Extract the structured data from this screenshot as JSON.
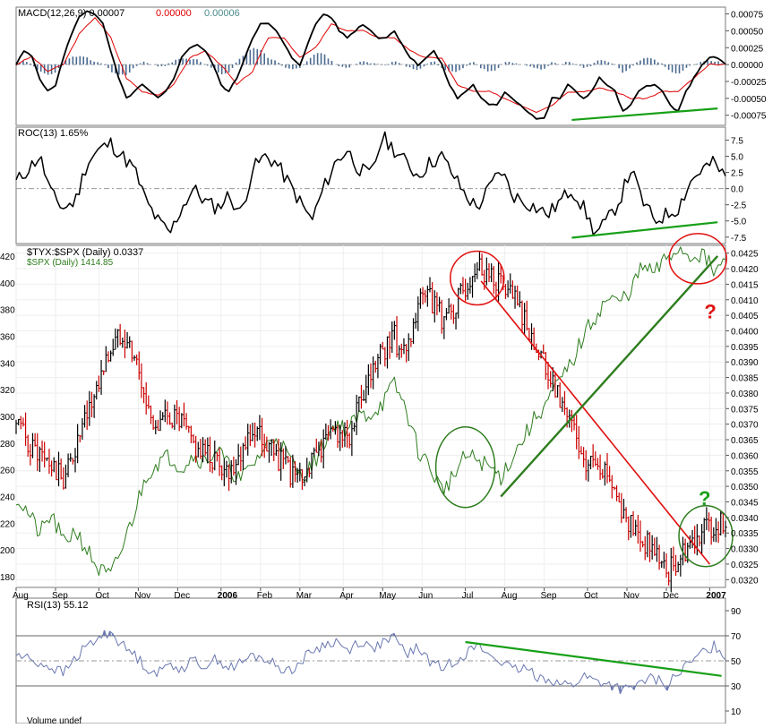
{
  "colors": {
    "price_up": "#000000",
    "price_down": "#cc0000",
    "spx_line": "#2e7d1e",
    "macd_line": "#000000",
    "signal_line": "#e00000",
    "histogram": "#4a6a90",
    "roc_line": "#000000",
    "rsi_line": "#6a78b0",
    "annotation_green": "#18a018",
    "annotation_red": "#e01010",
    "grid": "#d8d8d8"
  },
  "chart_data": [
    {
      "id": "macd",
      "type": "line",
      "title": "MACD(12,26,9)",
      "legend": [
        {
          "text": "MACD(12,26,9) 0.00007",
          "color": "#000000"
        },
        {
          "text": "0.00000",
          "color": "#e00000"
        },
        {
          "text": "0.00006",
          "color": "#4a8a8a"
        }
      ],
      "ylim": [
        -0.0009,
        0.00085
      ],
      "yticks": [
        "0.00075",
        "0.00050",
        "0.00025",
        "0.00000",
        "-0.00025",
        "-0.00050",
        "-0.00075"
      ],
      "ytick_values": [
        0.00075,
        0.0005,
        0.00025,
        0,
        -0.00025,
        -0.0005,
        -0.00075
      ],
      "series": [
        {
          "name": "MACD",
          "x": [
            0,
            2,
            4,
            6,
            8,
            10,
            12,
            14,
            16,
            18,
            20,
            22,
            24,
            26,
            28,
            30,
            32,
            34,
            36,
            38,
            40,
            42,
            44,
            46,
            48,
            50,
            52,
            54,
            56,
            58,
            60,
            62,
            64,
            66,
            68,
            70,
            72,
            74,
            76,
            78,
            80,
            82,
            84,
            86,
            88,
            90,
            92,
            94,
            96,
            98,
            100,
            102,
            104,
            106,
            108,
            110,
            112,
            114,
            116,
            118,
            120,
            122,
            124,
            126,
            128,
            130,
            132,
            134,
            136,
            138,
            140,
            142,
            144,
            146,
            148,
            150,
            152,
            154,
            156,
            158,
            160,
            162,
            164,
            166,
            168,
            170,
            172,
            174,
            176,
            178,
            180
          ],
          "values": [
            0.0,
            0.0002,
            0.00012,
            -0.0002,
            -0.0004,
            -0.0003,
            0.0001,
            0.00045,
            0.0007,
            0.0008,
            0.00075,
            0.0006,
            0.0002,
            -0.0002,
            -0.0005,
            -0.0004,
            -0.0003,
            -0.0004,
            -0.0005,
            -0.0004,
            -0.0002,
            0.0001,
            0.00025,
            0.0003,
            0.0002,
            0.0,
            -0.0003,
            -0.0004,
            -0.0002,
            0.0001,
            0.0004,
            0.0006,
            0.0006,
            0.0005,
            0.0003,
            0.0001,
            0.0,
            0.0003,
            0.0006,
            0.00075,
            0.0007,
            0.0005,
            0.0004,
            0.0005,
            0.0006,
            0.0005,
            0.0004,
            0.0004,
            0.0005,
            0.0003,
            0.0001,
            0.0,
            0.0001,
            0.0002,
            0.0,
            -0.0003,
            -0.0005,
            -0.0004,
            -0.0003,
            -0.0005,
            -0.0006,
            -0.0006,
            -0.0004,
            -0.0005,
            -0.0006,
            -0.0007,
            -0.0008,
            -0.0008,
            -0.0005,
            -0.0005,
            -0.0003,
            -0.0004,
            -0.0005,
            -0.0004,
            -0.0002,
            -0.0003,
            -0.0004,
            -0.0007,
            -0.0006,
            -0.0004,
            -0.0003,
            -0.0003,
            -0.0004,
            -0.0006,
            -0.0007,
            -0.0004,
            -0.0002,
            0.0,
            0.0001,
            0.0001,
            0.0
          ]
        },
        {
          "name": "Signal",
          "x": [
            0,
            4,
            8,
            12,
            16,
            20,
            24,
            28,
            32,
            36,
            40,
            44,
            48,
            52,
            56,
            60,
            64,
            68,
            72,
            76,
            80,
            84,
            88,
            92,
            96,
            100,
            104,
            108,
            112,
            116,
            120,
            124,
            128,
            132,
            136,
            140,
            144,
            148,
            152,
            156,
            160,
            164,
            168,
            172,
            176,
            180
          ],
          "values": [
            0.0,
            0.00012,
            -0.0001,
            0.0,
            0.00045,
            0.0007,
            0.0004,
            -0.0002,
            -0.0004,
            -0.00045,
            -0.0003,
            0.0001,
            0.0002,
            0.0,
            -0.0003,
            -0.0001,
            0.0004,
            0.0004,
            0.0001,
            0.00025,
            0.0006,
            0.0005,
            0.0005,
            0.0004,
            0.0004,
            0.0002,
            0.0001,
            0.0001,
            -0.0003,
            -0.0004,
            -0.0004,
            -0.0005,
            -0.0006,
            -0.0007,
            -0.0006,
            -0.0004,
            -0.0004,
            -0.00035,
            -0.0004,
            -0.0005,
            -0.0005,
            -0.0004,
            -0.0004,
            -0.0002,
            0.0,
            0.0
          ]
        }
      ],
      "divergence": {
        "x": [
          141,
          178
        ],
        "values": [
          -0.00082,
          -0.00065
        ],
        "color": "#18a018"
      }
    },
    {
      "id": "roc",
      "type": "line",
      "title": "ROC(13)",
      "legend": [
        {
          "text": "ROC(13) 1.65%",
          "color": "#000000"
        }
      ],
      "ylim": [
        -8.5,
        9.5
      ],
      "yticks": [
        "7.5",
        "5.0",
        "2.5",
        "0.0",
        "-2.5",
        "-5.0",
        "-7.5"
      ],
      "ytick_values": [
        7.5,
        5.0,
        2.5,
        0,
        -2.5,
        -5.0,
        -7.5
      ],
      "series": [
        {
          "name": "ROC",
          "x": [
            0,
            3,
            6,
            9,
            12,
            15,
            18,
            21,
            24,
            27,
            30,
            33,
            36,
            39,
            42,
            45,
            48,
            51,
            54,
            57,
            60,
            63,
            66,
            69,
            72,
            75,
            78,
            81,
            84,
            87,
            90,
            93,
            96,
            99,
            102,
            105,
            108,
            111,
            114,
            117,
            120,
            123,
            126,
            129,
            132,
            135,
            138,
            141,
            144,
            147,
            150,
            153,
            156,
            159,
            162,
            165,
            168,
            171,
            174,
            177,
            180
          ],
          "values": [
            1,
            3,
            5,
            -1,
            -3,
            -2,
            4,
            6,
            7,
            5,
            3,
            -2,
            -5,
            -7,
            -3,
            0,
            -2,
            -3,
            -1,
            -4,
            3,
            5,
            4,
            1,
            -2,
            -5,
            0,
            4,
            6,
            3,
            2,
            8,
            6,
            4,
            2,
            4,
            5,
            2,
            -1,
            -3,
            0,
            3,
            -1,
            -2,
            -3,
            -4,
            -2,
            0,
            -3,
            -7,
            -5,
            -2,
            3,
            -2,
            -5,
            -4,
            -3,
            1,
            3,
            4,
            1.65
          ]
        }
      ],
      "divergence": {
        "x": [
          141,
          178
        ],
        "values": [
          -7.6,
          -5.2
        ],
        "color": "#18a018"
      }
    },
    {
      "id": "price",
      "type": "line",
      "title": "$TYX:$SPX (Daily)",
      "legend": [
        {
          "text": "$TYX:$SPX (Daily) 0.0337",
          "color": "#000000"
        },
        {
          "text": "$SPX (Daily) 1414.85",
          "color": "#2e7d1e"
        }
      ],
      "ylim": [
        0.03175,
        0.04275
      ],
      "yticks_right": [
        "0.0425",
        "0.0420",
        "0.0415",
        "0.0410",
        "0.0405",
        "0.0400",
        "0.0395",
        "0.0390",
        "0.0385",
        "0.0380",
        "0.0375",
        "0.0370",
        "0.0365",
        "0.0360",
        "0.0355",
        "0.0350",
        "0.0345",
        "0.0340",
        "0.0335",
        "0.0330",
        "0.0325",
        "0.0320"
      ],
      "ytick_right_values": [
        0.0425,
        0.042,
        0.0415,
        0.041,
        0.0405,
        0.04,
        0.0395,
        0.039,
        0.0385,
        0.038,
        0.0375,
        0.037,
        0.0365,
        0.036,
        0.0355,
        0.035,
        0.0345,
        0.034,
        0.0335,
        0.033,
        0.0325,
        0.032
      ],
      "yticks_left": [
        "420",
        "400",
        "380",
        "360",
        "340",
        "320",
        "300",
        "280",
        "260",
        "240",
        "220",
        "200",
        "180"
      ],
      "ytick_left_values": [
        1420,
        1400,
        1380,
        1360,
        1340,
        1320,
        1300,
        1280,
        1260,
        1240,
        1220,
        1200,
        1180
      ],
      "spx_ylim": [
        1172,
        1428
      ],
      "xticks": [
        "Aug",
        "Sep",
        "Oct",
        "Nov",
        "Dec",
        "2006",
        "Feb",
        "Mar",
        "Apr",
        "May",
        "Jun",
        "Jul",
        "Aug",
        "Sep",
        "Oct",
        "Nov",
        "Dec",
        "2007"
      ],
      "xtick_positions": [
        0,
        10,
        21,
        31,
        41,
        52,
        62,
        72,
        83,
        93,
        103,
        114,
        124,
        134,
        145,
        155,
        165,
        176
      ],
      "series": [
        {
          "name": "$TYX:$SPX",
          "x": [
            0,
            3,
            6,
            9,
            12,
            15,
            18,
            21,
            24,
            27,
            30,
            33,
            36,
            39,
            42,
            45,
            48,
            51,
            54,
            57,
            60,
            63,
            66,
            69,
            72,
            75,
            78,
            81,
            84,
            87,
            90,
            93,
            96,
            99,
            102,
            105,
            108,
            111,
            114,
            117,
            120,
            123,
            126,
            129,
            132,
            135,
            138,
            141,
            144,
            147,
            150,
            153,
            156,
            159,
            162,
            165,
            168,
            171,
            174,
            177,
            180
          ],
          "values": [
            0.037,
            0.0364,
            0.036,
            0.0356,
            0.0352,
            0.0362,
            0.0372,
            0.0384,
            0.0394,
            0.04,
            0.0392,
            0.0376,
            0.0369,
            0.0373,
            0.037,
            0.0363,
            0.036,
            0.0358,
            0.0355,
            0.0362,
            0.0368,
            0.0365,
            0.036,
            0.0355,
            0.0352,
            0.0358,
            0.0364,
            0.0368,
            0.0365,
            0.0375,
            0.0384,
            0.0394,
            0.0398,
            0.039,
            0.0408,
            0.041,
            0.0404,
            0.0407,
            0.0414,
            0.0422,
            0.0418,
            0.0415,
            0.041,
            0.0405,
            0.0395,
            0.0385,
            0.0378,
            0.037,
            0.0355,
            0.036,
            0.0355,
            0.0345,
            0.0338,
            0.0332,
            0.033,
            0.0322,
            0.0327,
            0.0332,
            0.0336,
            0.0338,
            0.0337
          ]
        },
        {
          "name": "$SPX",
          "x": [
            0,
            3,
            6,
            9,
            12,
            15,
            18,
            21,
            24,
            27,
            30,
            33,
            36,
            39,
            42,
            45,
            48,
            51,
            54,
            57,
            60,
            63,
            66,
            69,
            72,
            75,
            78,
            81,
            84,
            87,
            90,
            93,
            96,
            99,
            102,
            105,
            108,
            111,
            114,
            117,
            120,
            123,
            126,
            129,
            132,
            135,
            138,
            141,
            144,
            147,
            150,
            153,
            156,
            159,
            162,
            165,
            168,
            171,
            174,
            177,
            180
          ],
          "values": [
            1240,
            1228,
            1212,
            1226,
            1205,
            1215,
            1200,
            1185,
            1180,
            1202,
            1228,
            1256,
            1266,
            1270,
            1262,
            1271,
            1266,
            1276,
            1262,
            1252,
            1264,
            1276,
            1286,
            1270,
            1256,
            1262,
            1280,
            1295,
            1290,
            1300,
            1302,
            1310,
            1324,
            1305,
            1275,
            1262,
            1245,
            1255,
            1270,
            1268,
            1262,
            1255,
            1270,
            1285,
            1300,
            1312,
            1326,
            1340,
            1360,
            1375,
            1388,
            1385,
            1395,
            1412,
            1407,
            1418,
            1426,
            1420,
            1422,
            1408,
            1415
          ]
        }
      ],
      "annotations": {
        "red_trendline": {
          "x": [
            118,
            176
          ],
          "values": [
            0.0416,
            0.0325
          ]
        },
        "green_trendline": {
          "x": [
            123,
            178
          ],
          "spx_values": [
            1240,
            1420
          ]
        },
        "question_marks": [
          "?",
          "?"
        ]
      }
    },
    {
      "id": "rsi",
      "type": "line",
      "title": "RSI(13)",
      "legend": [
        {
          "text": "RSI(13) 55.12",
          "color": "#000000"
        }
      ],
      "ylim": [
        0,
        100
      ],
      "yticks": [
        "90",
        "70",
        "50",
        "30",
        "10"
      ],
      "ytick_values": [
        90,
        70,
        50,
        30,
        10
      ],
      "series": [
        {
          "name": "RSI",
          "x": [
            0,
            3,
            6,
            9,
            12,
            15,
            18,
            21,
            24,
            27,
            30,
            33,
            36,
            39,
            42,
            45,
            48,
            51,
            54,
            57,
            60,
            63,
            66,
            69,
            72,
            75,
            78,
            81,
            84,
            87,
            90,
            93,
            96,
            99,
            102,
            105,
            108,
            111,
            114,
            117,
            120,
            123,
            126,
            129,
            132,
            135,
            138,
            141,
            144,
            147,
            150,
            153,
            156,
            159,
            162,
            165,
            168,
            171,
            174,
            177,
            180
          ],
          "values": [
            55,
            52,
            48,
            45,
            40,
            52,
            62,
            68,
            74,
            62,
            55,
            45,
            40,
            48,
            44,
            50,
            46,
            52,
            44,
            48,
            54,
            52,
            46,
            42,
            48,
            58,
            62,
            66,
            58,
            66,
            60,
            64,
            68,
            56,
            60,
            50,
            44,
            50,
            56,
            62,
            55,
            50,
            42,
            44,
            38,
            36,
            32,
            30,
            38,
            34,
            32,
            28,
            26,
            34,
            36,
            30,
            40,
            48,
            56,
            62,
            55.12
          ]
        }
      ],
      "divergence": {
        "x": [
          114,
          179
        ],
        "values": [
          65,
          38
        ],
        "color": "#18a018"
      }
    }
  ],
  "footer": {
    "label": "Volume undef"
  }
}
